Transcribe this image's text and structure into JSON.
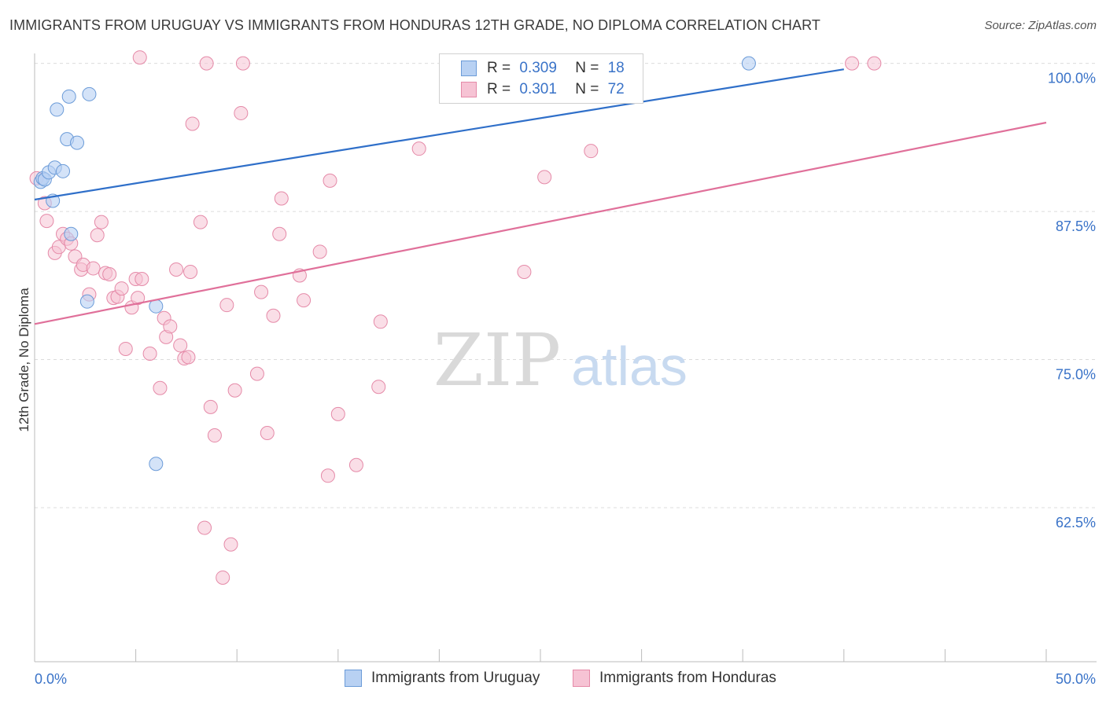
{
  "title": "IMMIGRANTS FROM URUGUAY VS IMMIGRANTS FROM HONDURAS 12TH GRADE, NO DIPLOMA CORRELATION CHART",
  "source": "Source: ZipAtlas.com",
  "watermark": {
    "zip": "ZIP",
    "atlas": "atlas"
  },
  "legend": {
    "r_label": "R =",
    "n_label": "N =",
    "rows": [
      {
        "r": "0.309",
        "n": "18"
      },
      {
        "r": "0.301",
        "n": "72"
      }
    ]
  },
  "colors": {
    "uruguay_fill": "#b8d1f3",
    "uruguay_stroke": "#6b9bd8",
    "uruguay_line": "#2f6fc9",
    "honduras_fill": "#f6c3d4",
    "honduras_stroke": "#e58aa8",
    "honduras_line": "#e0709a",
    "axis_text": "#3a73c8",
    "grid": "#dcdcdc"
  },
  "chart_data": {
    "type": "scatter",
    "title": "IMMIGRANTS FROM URUGUAY VS IMMIGRANTS FROM HONDURAS 12TH GRADE, NO DIPLOMA CORRELATION CHART",
    "xlabel": "",
    "ylabel": "12th Grade, No Diploma",
    "xlim": [
      0,
      50
    ],
    "ylim": [
      49.5,
      101.5
    ],
    "x_tick_labels": [
      "0.0%",
      "50.0%"
    ],
    "y_ticks": [
      62.5,
      75.0,
      87.5,
      100.0
    ],
    "y_tick_labels": [
      "62.5%",
      "75.0%",
      "87.5%",
      "100.0%"
    ],
    "grid": true,
    "legend_position": "top-center",
    "series": [
      {
        "name": "Immigrants from Uruguay",
        "points": [
          [
            0.3,
            90.0
          ],
          [
            0.4,
            90.3
          ],
          [
            0.5,
            90.2
          ],
          [
            0.7,
            90.8
          ],
          [
            0.9,
            88.4
          ],
          [
            1.0,
            91.2
          ],
          [
            1.1,
            96.1
          ],
          [
            1.4,
            90.9
          ],
          [
            1.6,
            93.6
          ],
          [
            1.7,
            97.2
          ],
          [
            1.8,
            85.6
          ],
          [
            2.1,
            93.3
          ],
          [
            2.6,
            79.9
          ],
          [
            2.7,
            97.4
          ],
          [
            6.0,
            79.5
          ],
          [
            6.0,
            66.2
          ],
          [
            23.6,
            100.0
          ],
          [
            35.3,
            100.0
          ]
        ],
        "trend": {
          "x": [
            0,
            40.0
          ],
          "y": [
            88.5,
            99.5
          ]
        }
      },
      {
        "name": "Immigrants from Honduras",
        "points": [
          [
            0.1,
            90.3
          ],
          [
            0.5,
            88.2
          ],
          [
            0.6,
            86.7
          ],
          [
            1.0,
            84.0
          ],
          [
            1.2,
            84.5
          ],
          [
            1.4,
            85.6
          ],
          [
            1.6,
            85.2
          ],
          [
            1.8,
            84.8
          ],
          [
            2.0,
            83.7
          ],
          [
            2.3,
            82.6
          ],
          [
            2.4,
            83.0
          ],
          [
            2.7,
            80.5
          ],
          [
            2.9,
            82.7
          ],
          [
            3.1,
            85.5
          ],
          [
            3.3,
            86.6
          ],
          [
            3.5,
            82.3
          ],
          [
            3.7,
            82.2
          ],
          [
            3.9,
            80.2
          ],
          [
            4.1,
            80.3
          ],
          [
            4.3,
            81.0
          ],
          [
            4.5,
            75.9
          ],
          [
            4.8,
            79.4
          ],
          [
            5.0,
            81.8
          ],
          [
            5.1,
            80.2
          ],
          [
            5.3,
            81.8
          ],
          [
            5.7,
            75.5
          ],
          [
            6.2,
            72.6
          ],
          [
            6.4,
            78.5
          ],
          [
            6.5,
            76.9
          ],
          [
            6.7,
            77.8
          ],
          [
            7.0,
            82.6
          ],
          [
            7.2,
            76.2
          ],
          [
            7.4,
            75.1
          ],
          [
            7.6,
            75.2
          ],
          [
            7.7,
            82.4
          ],
          [
            8.2,
            86.6
          ],
          [
            8.4,
            60.8
          ],
          [
            8.7,
            71.0
          ],
          [
            8.9,
            68.6
          ],
          [
            9.3,
            56.6
          ],
          [
            9.5,
            79.6
          ],
          [
            9.7,
            59.4
          ],
          [
            9.9,
            72.4
          ],
          [
            10.2,
            95.8
          ],
          [
            10.3,
            100.0
          ],
          [
            11.0,
            73.8
          ],
          [
            11.2,
            80.7
          ],
          [
            11.5,
            68.8
          ],
          [
            11.8,
            78.7
          ],
          [
            12.1,
            85.6
          ],
          [
            12.2,
            88.6
          ],
          [
            13.1,
            82.1
          ],
          [
            13.3,
            80.0
          ],
          [
            14.1,
            84.1
          ],
          [
            14.5,
            65.2
          ],
          [
            14.6,
            90.1
          ],
          [
            15.0,
            70.4
          ],
          [
            15.9,
            66.1
          ],
          [
            17.0,
            72.7
          ],
          [
            17.1,
            78.2
          ],
          [
            19.0,
            92.8
          ],
          [
            23.9,
            100.0
          ],
          [
            24.2,
            82.4
          ],
          [
            25.2,
            90.4
          ],
          [
            26.1,
            100.0
          ],
          [
            27.5,
            92.6
          ],
          [
            28.6,
            100.0
          ],
          [
            8.5,
            100.0
          ],
          [
            40.4,
            100.0
          ],
          [
            41.5,
            100.0
          ],
          [
            7.8,
            94.9
          ],
          [
            5.2,
            100.5
          ]
        ],
        "trend": {
          "x": [
            0,
            50.0
          ],
          "y": [
            78.0,
            95.0
          ]
        }
      }
    ]
  }
}
